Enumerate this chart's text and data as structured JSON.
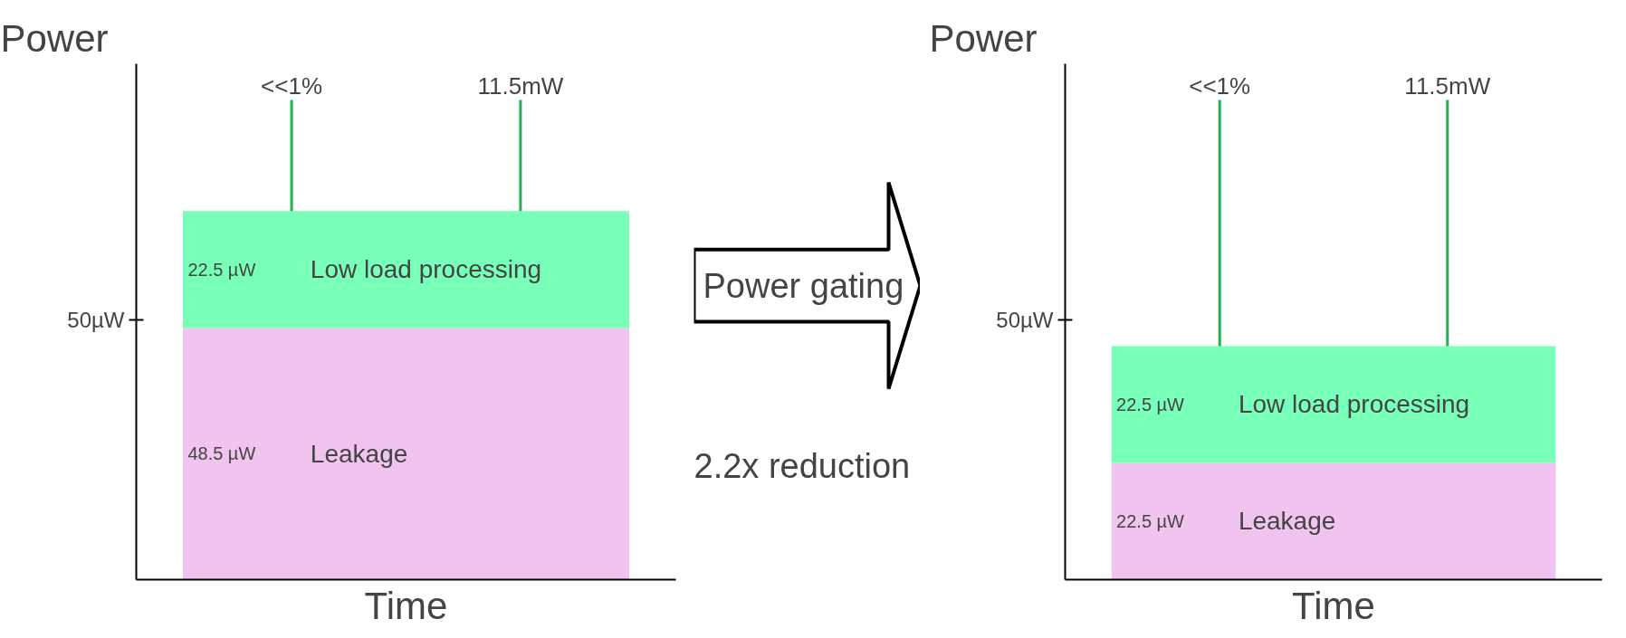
{
  "chart_data": [
    {
      "type": "bar",
      "ylabel": "Power",
      "xlabel": "Time",
      "categories": [
        null
      ],
      "stacked": true,
      "series": [
        {
          "name": "Leakage",
          "color": "#f0c4ee",
          "values": [
            48.5
          ],
          "value_labels": [
            "48.5 µW"
          ]
        },
        {
          "name": "Low load processing",
          "color": "#78ffb8",
          "values": [
            22.5
          ],
          "value_labels": [
            "22.5 µW"
          ]
        }
      ],
      "ref_lines": [
        {
          "axis": "y",
          "value": 50,
          "label": "50µW"
        }
      ],
      "annotations": [
        "<<1%",
        "11.5mW"
      ]
    },
    {
      "type": "other",
      "annotations": [
        "Power gating",
        "2.2x reduction"
      ]
    },
    {
      "type": "bar",
      "ylabel": "Power",
      "xlabel": "Time",
      "categories": [
        null
      ],
      "stacked": true,
      "series": [
        {
          "name": "Leakage",
          "color": "#f0c4ee",
          "values": [
            22.5
          ],
          "value_labels": [
            "22.5 µW"
          ]
        },
        {
          "name": "Low load processing",
          "color": "#78ffb8",
          "values": [
            22.5
          ],
          "value_labels": [
            "22.5 µW"
          ]
        }
      ],
      "ref_lines": [
        {
          "axis": "y",
          "value": 50,
          "label": "50µW"
        }
      ],
      "annotations": [
        "<<1%",
        "11.5mW"
      ]
    }
  ]
}
